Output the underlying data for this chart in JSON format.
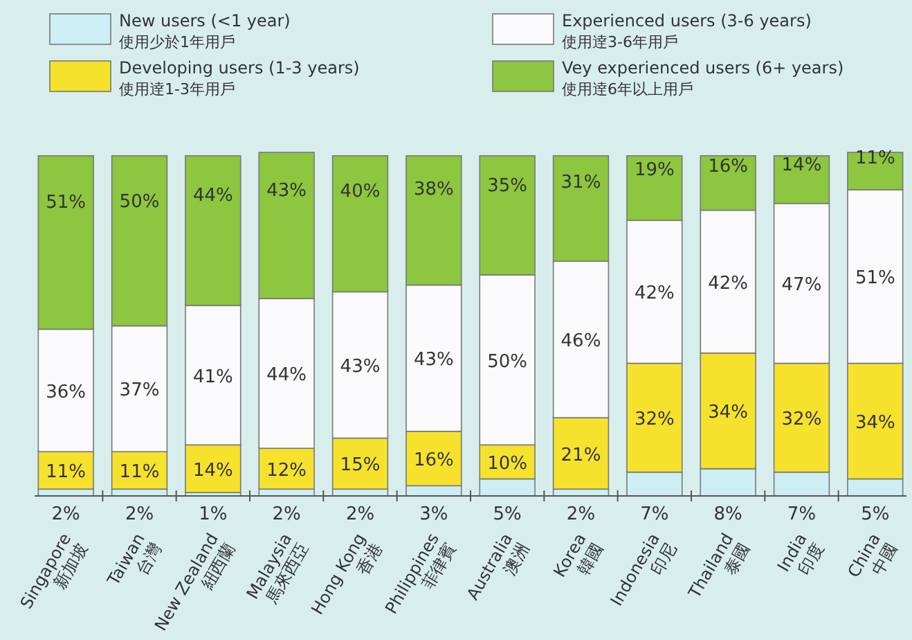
{
  "chart_data": {
    "type": "bar",
    "stacked": true,
    "legend": "top",
    "tick_labels": "x",
    "ylim": [
      0,
      101
    ],
    "categories": [
      "Singapore\n新加坡",
      "Taiwan\n台灣",
      "New Zealand\n紐西蘭",
      "Malaysia\n馬來西亞",
      "Hong Kong\n香港",
      "Philippines\n菲律賓",
      "Australia\n澳洲",
      "Korea\n韓國",
      "Indonesia\n印尼",
      "Thailand\n泰國",
      "India\n印度",
      "China\n中國"
    ],
    "series": [
      {
        "name": "New users (<1 year)\n使用少於1年用戶",
        "color": "#cdeef5",
        "values": [
          2,
          2,
          1,
          2,
          2,
          3,
          5,
          2,
          7,
          8,
          7,
          5
        ],
        "value_labels": [
          "2%",
          "2%",
          "1%",
          "2%",
          "2%",
          "3%",
          "5%",
          "2%",
          "7%",
          "8%",
          "7%",
          "5%"
        ]
      },
      {
        "name": "Developing users (1-3 years)\n使用逹1-3年用戶",
        "color": "#f6e22c",
        "values": [
          11,
          11,
          14,
          12,
          15,
          16,
          10,
          21,
          32,
          34,
          32,
          34
        ],
        "value_labels": [
          "11%",
          "11%",
          "14%",
          "12%",
          "15%",
          "16%",
          "10%",
          "21%",
          "32%",
          "34%",
          "32%",
          "34%"
        ]
      },
      {
        "name": "Experienced users (3-6 years)\n使用逹3-6年用戶",
        "color": "#fafafc",
        "values": [
          36,
          37,
          41,
          44,
          43,
          43,
          50,
          46,
          42,
          42,
          47,
          51
        ],
        "value_labels": [
          "36%",
          "37%",
          "41%",
          "44%",
          "43%",
          "43%",
          "50%",
          "46%",
          "42%",
          "42%",
          "47%",
          "51%"
        ]
      },
      {
        "name": "Vey experienced users (6+ years)\n使用逹6年以上用戶",
        "color": "#8dc63f",
        "values": [
          51,
          50,
          44,
          43,
          40,
          38,
          35,
          31,
          19,
          16,
          14,
          11
        ],
        "value_labels": [
          "51%",
          "50%",
          "44%",
          "43%",
          "40%",
          "38%",
          "35%",
          "31%",
          "19%",
          "16%",
          "14%",
          "11%"
        ]
      }
    ]
  }
}
